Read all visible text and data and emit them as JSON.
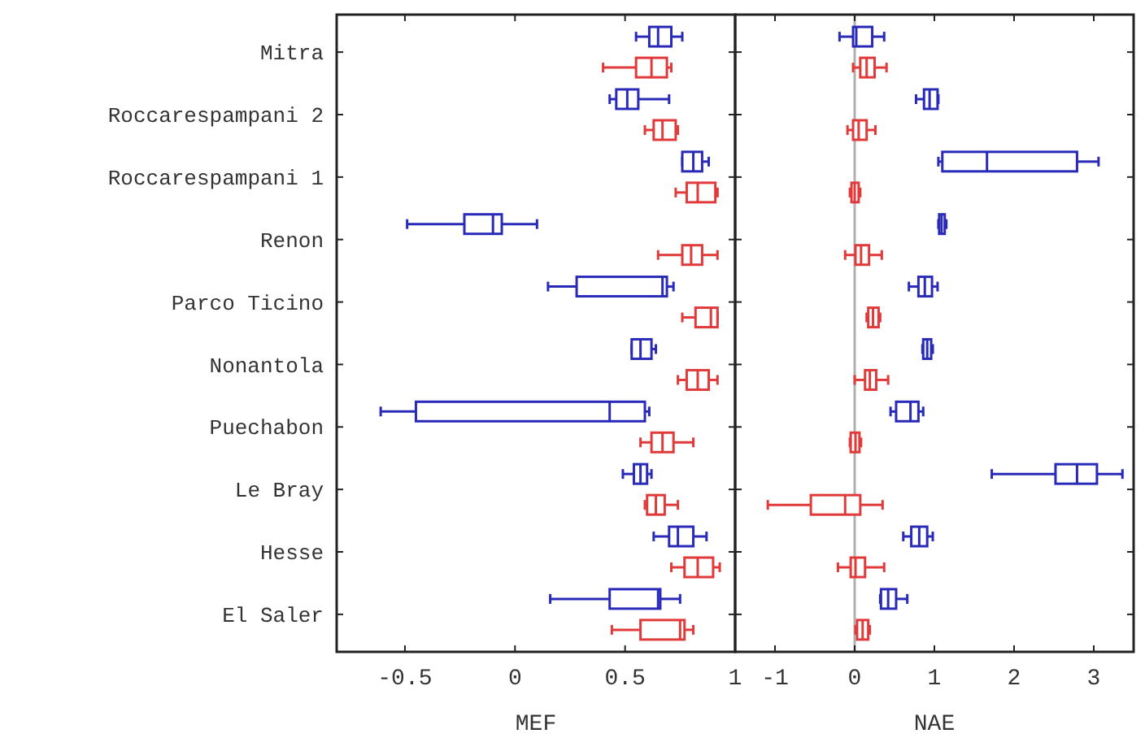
{
  "chart_data": [
    {
      "type": "box",
      "orientation": "horizontal",
      "xlabel": "MEF",
      "xlim": [
        -0.81,
        1
      ],
      "xticks": [
        -0.5,
        0,
        0.5,
        1
      ],
      "categories": [
        "Mitra",
        "Roccarespampani 2",
        "Roccarespampani 1",
        "Renon",
        "Parco Ticino",
        "Nonantola",
        "Puechabon",
        "Le Bray",
        "Hesse",
        "El Saler"
      ],
      "series": [
        {
          "color": "#2a2ab8",
          "boxes": [
            {
              "low": 0.55,
              "q1": 0.61,
              "median": 0.65,
              "q3": 0.71,
              "high": 0.76
            },
            {
              "low": 0.43,
              "q1": 0.46,
              "median": 0.51,
              "q3": 0.56,
              "high": 0.7
            },
            {
              "low": 0.76,
              "q1": 0.76,
              "median": 0.81,
              "q3": 0.85,
              "high": 0.88
            },
            {
              "low": -0.49,
              "q1": -0.23,
              "median": -0.1,
              "q3": -0.06,
              "high": 0.1
            },
            {
              "low": 0.15,
              "q1": 0.28,
              "median": 0.67,
              "q3": 0.69,
              "high": 0.72
            },
            {
              "low": 0.53,
              "q1": 0.53,
              "median": 0.57,
              "q3": 0.62,
              "high": 0.64
            },
            {
              "low": -0.61,
              "q1": -0.45,
              "median": 0.43,
              "q3": 0.59,
              "high": 0.61
            },
            {
              "low": 0.49,
              "q1": 0.54,
              "median": 0.57,
              "q3": 0.6,
              "high": 0.62
            },
            {
              "low": 0.63,
              "q1": 0.7,
              "median": 0.74,
              "q3": 0.81,
              "high": 0.87
            },
            {
              "low": 0.16,
              "q1": 0.43,
              "median": 0.65,
              "q3": 0.66,
              "high": 0.75
            }
          ]
        },
        {
          "color": "#e03a3a",
          "boxes": [
            {
              "low": 0.4,
              "q1": 0.55,
              "median": 0.62,
              "q3": 0.69,
              "high": 0.71
            },
            {
              "low": 0.59,
              "q1": 0.63,
              "median": 0.67,
              "q3": 0.73,
              "high": 0.74
            },
            {
              "low": 0.73,
              "q1": 0.78,
              "median": 0.83,
              "q3": 0.91,
              "high": 0.92
            },
            {
              "low": 0.65,
              "q1": 0.76,
              "median": 0.8,
              "q3": 0.85,
              "high": 0.92
            },
            {
              "low": 0.76,
              "q1": 0.82,
              "median": 0.89,
              "q3": 0.92,
              "high": 0.92
            },
            {
              "low": 0.74,
              "q1": 0.78,
              "median": 0.83,
              "q3": 0.88,
              "high": 0.92
            },
            {
              "low": 0.57,
              "q1": 0.62,
              "median": 0.67,
              "q3": 0.72,
              "high": 0.81
            },
            {
              "low": 0.59,
              "q1": 0.6,
              "median": 0.64,
              "q3": 0.68,
              "high": 0.74
            },
            {
              "low": 0.71,
              "q1": 0.77,
              "median": 0.83,
              "q3": 0.9,
              "high": 0.93
            },
            {
              "low": 0.44,
              "q1": 0.57,
              "median": 0.75,
              "q3": 0.77,
              "high": 0.81
            }
          ]
        }
      ]
    },
    {
      "type": "box",
      "orientation": "horizontal",
      "xlabel": "NAE",
      "xlim": [
        -1.5,
        3.5
      ],
      "xticks": [
        -1,
        0,
        1,
        2,
        3
      ],
      "tick_labels": "x",
      "categories": [
        null,
        null,
        null,
        null,
        null,
        null,
        null,
        null,
        null,
        null
      ],
      "ref_lines": [
        {
          "axis": "x",
          "value": 0,
          "color": "#b0b0b0"
        }
      ],
      "series": [
        {
          "color": "#2a2ab8",
          "boxes": [
            {
              "low": -0.19,
              "q1": -0.02,
              "median": 0.02,
              "q3": 0.22,
              "high": 0.37
            },
            {
              "low": 0.77,
              "q1": 0.87,
              "median": 0.94,
              "q3": 1.04,
              "high": 1.05
            },
            {
              "low": 1.05,
              "q1": 1.1,
              "median": 1.66,
              "q3": 2.79,
              "high": 3.06
            },
            {
              "low": 1.05,
              "q1": 1.06,
              "median": 1.09,
              "q3": 1.13,
              "high": 1.15
            },
            {
              "low": 0.68,
              "q1": 0.8,
              "median": 0.88,
              "q3": 0.97,
              "high": 1.04
            },
            {
              "low": 0.85,
              "q1": 0.86,
              "median": 0.91,
              "q3": 0.96,
              "high": 0.98
            },
            {
              "low": 0.45,
              "q1": 0.52,
              "median": 0.7,
              "q3": 0.8,
              "high": 0.86
            },
            {
              "low": 1.72,
              "q1": 2.52,
              "median": 2.79,
              "q3": 3.04,
              "high": 3.36
            },
            {
              "low": 0.61,
              "q1": 0.71,
              "median": 0.81,
              "q3": 0.91,
              "high": 0.98
            },
            {
              "low": 0.32,
              "q1": 0.33,
              "median": 0.42,
              "q3": 0.52,
              "high": 0.66
            }
          ]
        },
        {
          "color": "#e03a3a",
          "boxes": [
            {
              "low": -0.02,
              "q1": 0.07,
              "median": 0.15,
              "q3": 0.25,
              "high": 0.4
            },
            {
              "low": -0.09,
              "q1": -0.02,
              "median": 0.05,
              "q3": 0.15,
              "high": 0.26
            },
            {
              "low": -0.06,
              "q1": -0.04,
              "median": 0,
              "q3": 0.05,
              "high": 0.07
            },
            {
              "low": -0.12,
              "q1": 0.01,
              "median": 0.08,
              "q3": 0.18,
              "high": 0.34
            },
            {
              "low": 0.15,
              "q1": 0.17,
              "median": 0.23,
              "q3": 0.3,
              "high": 0.32
            },
            {
              "low": 0,
              "q1": 0.13,
              "median": 0.19,
              "q3": 0.27,
              "high": 0.42
            },
            {
              "low": -0.06,
              "q1": -0.05,
              "median": 0.01,
              "q3": 0.06,
              "high": 0.08
            },
            {
              "low": -1.09,
              "q1": -0.55,
              "median": -0.12,
              "q3": 0.07,
              "high": 0.35
            },
            {
              "low": -0.21,
              "q1": -0.05,
              "median": 0.01,
              "q3": 0.13,
              "high": 0.37
            },
            {
              "low": 0.01,
              "q1": 0.03,
              "median": 0.1,
              "q3": 0.17,
              "high": 0.19
            }
          ]
        }
      ]
    }
  ]
}
